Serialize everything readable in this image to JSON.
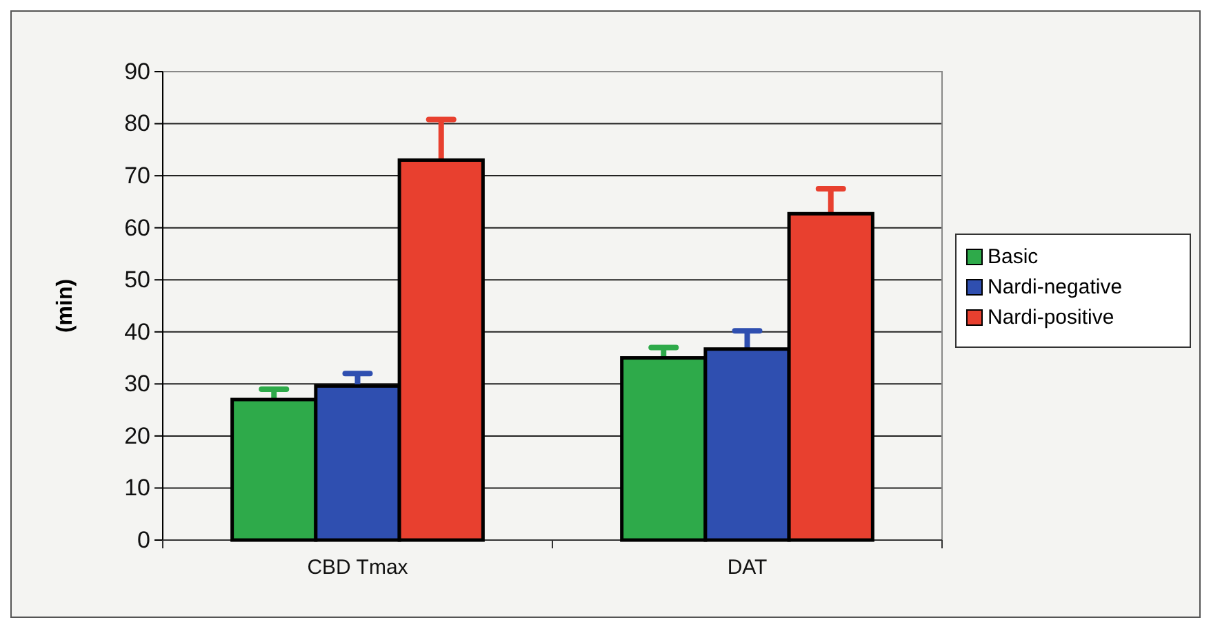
{
  "chart_data": {
    "type": "bar",
    "ylabel": "(min)",
    "categories": [
      "CBD Tmax",
      "DAT"
    ],
    "series": [
      {
        "name": "Basic",
        "color": "#2eaa4a",
        "values": [
          27,
          35
        ],
        "errors": [
          [
            27,
            29
          ],
          [
            35,
            37
          ]
        ]
      },
      {
        "name": "Nardi-negative",
        "color": "#2f4fb0",
        "values": [
          29.6,
          36.7
        ],
        "errors": [
          [
            29.6,
            32
          ],
          [
            36.7,
            40.2
          ]
        ]
      },
      {
        "name": "Nardi-positive",
        "color": "#e8402f",
        "values": [
          73,
          62.7
        ],
        "errors": [
          [
            73,
            80.8
          ],
          [
            62.7,
            67.5
          ]
        ]
      }
    ],
    "ylim": [
      0,
      90
    ],
    "yticks": [
      0,
      10,
      20,
      30,
      40,
      50,
      60,
      70,
      80,
      90
    ],
    "grid": "y",
    "legend": "right"
  }
}
